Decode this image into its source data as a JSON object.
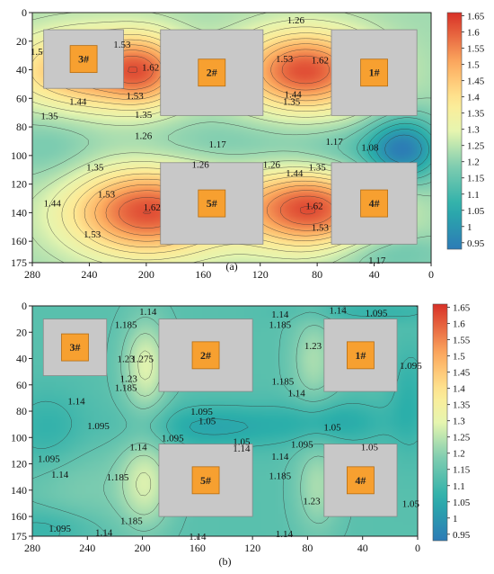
{
  "chart_data": [
    {
      "type": "heatmap",
      "subplot_label": "(a)",
      "x_ticks": [
        280,
        240,
        200,
        160,
        120,
        80,
        40,
        0
      ],
      "y_ticks": [
        0,
        20,
        40,
        60,
        80,
        100,
        120,
        140,
        160,
        175
      ],
      "xlim": [
        280,
        0
      ],
      "ylim": [
        0,
        175
      ],
      "colorbar": {
        "ticks": [
          "1.65",
          "1.6",
          "1.55",
          "1.5",
          "1.45",
          "1.4",
          "1.35",
          "1.3",
          "1.25",
          "1.2",
          "1.15",
          "1.1",
          "1.05",
          "1",
          "0.95"
        ],
        "min": 0.93,
        "max": 1.66
      },
      "base_value": 1.22,
      "blobs": [
        {
          "x": 240,
          "y": 40,
          "sx": 40,
          "sy": 20,
          "a": 0.3
        },
        {
          "x": 200,
          "y": 40,
          "sx": 20,
          "sy": 18,
          "a": 0.2
        },
        {
          "x": 88,
          "y": 40,
          "sx": 34,
          "sy": 20,
          "a": 0.4
        },
        {
          "x": 200,
          "y": 140,
          "sx": 40,
          "sy": 22,
          "a": 0.4
        },
        {
          "x": 85,
          "y": 138,
          "sx": 34,
          "sy": 20,
          "a": 0.4
        },
        {
          "x": 150,
          "y": 92,
          "sx": 55,
          "sy": 14,
          "a": -0.05
        },
        {
          "x": 18,
          "y": 95,
          "sx": 18,
          "sy": 16,
          "a": -0.24
        },
        {
          "x": 50,
          "y": 100,
          "sx": 35,
          "sy": 14,
          "a": -0.08
        },
        {
          "x": 30,
          "y": 170,
          "sx": 30,
          "sy": 10,
          "a": -0.07
        },
        {
          "x": 270,
          "y": 95,
          "sx": 25,
          "sy": 20,
          "a": -0.05
        }
      ],
      "contour_levels": [
        0.99,
        1.035,
        1.08,
        1.125,
        1.17,
        1.215,
        1.26,
        1.305,
        1.35,
        1.395,
        1.44,
        1.485,
        1.53,
        1.575,
        1.62
      ],
      "machines": [
        {
          "label": "3#",
          "x1": 272,
          "x2": 216,
          "y1": 12,
          "y2": 53
        },
        {
          "label": "2#",
          "x1": 190,
          "x2": 118,
          "y1": 12,
          "y2": 72
        },
        {
          "label": "1#",
          "x1": 70,
          "x2": 10,
          "y1": 12,
          "y2": 72
        },
        {
          "label": "5#",
          "x1": 190,
          "x2": 118,
          "y1": 105,
          "y2": 162
        },
        {
          "label": "4#",
          "x1": 70,
          "x2": 10,
          "y1": 105,
          "y2": 162
        }
      ],
      "contour_labels": [
        {
          "text": "1.26",
          "x": 95,
          "y": 5
        },
        {
          "text": "1.5",
          "x": 277,
          "y": 27
        },
        {
          "text": "1.53",
          "x": 217,
          "y": 22
        },
        {
          "text": "1.62",
          "x": 197,
          "y": 38
        },
        {
          "text": "1.53",
          "x": 208,
          "y": 58
        },
        {
          "text": "1.44",
          "x": 248,
          "y": 62
        },
        {
          "text": "1.35",
          "x": 268,
          "y": 72
        },
        {
          "text": "1.35",
          "x": 202,
          "y": 71
        },
        {
          "text": "1.53",
          "x": 103,
          "y": 32
        },
        {
          "text": "1.62",
          "x": 78,
          "y": 33
        },
        {
          "text": "1.44",
          "x": 97,
          "y": 57
        },
        {
          "text": "1.35",
          "x": 98,
          "y": 62
        },
        {
          "text": "1.26",
          "x": 202,
          "y": 86
        },
        {
          "text": "1.17",
          "x": 150,
          "y": 92
        },
        {
          "text": "1.17",
          "x": 68,
          "y": 90
        },
        {
          "text": "1.08",
          "x": 43,
          "y": 94
        },
        {
          "text": "1.35",
          "x": 236,
          "y": 108
        },
        {
          "text": "1.26",
          "x": 162,
          "y": 106
        },
        {
          "text": "1.26",
          "x": 112,
          "y": 106
        },
        {
          "text": "1.44",
          "x": 96,
          "y": 112
        },
        {
          "text": "1.35",
          "x": 80,
          "y": 108
        },
        {
          "text": "1.44",
          "x": 266,
          "y": 133
        },
        {
          "text": "1.53",
          "x": 228,
          "y": 127
        },
        {
          "text": "1.62",
          "x": 196,
          "y": 136
        },
        {
          "text": "1.53",
          "x": 238,
          "y": 155
        },
        {
          "text": "1.62",
          "x": 82,
          "y": 135
        },
        {
          "text": "1.53",
          "x": 78,
          "y": 150
        },
        {
          "text": "1.17",
          "x": 38,
          "y": 173
        }
      ]
    },
    {
      "type": "heatmap",
      "subplot_label": "(b)",
      "x_ticks": [
        280,
        240,
        200,
        160,
        120,
        80,
        40,
        0
      ],
      "y_ticks": [
        0,
        20,
        40,
        60,
        80,
        100,
        120,
        140,
        160,
        175
      ],
      "xlim": [
        280,
        0
      ],
      "ylim": [
        0,
        175
      ],
      "colorbar": {
        "ticks": [
          "1.65",
          "1.6",
          "1.55",
          "1.5",
          "1.45",
          "1.4",
          "1.35",
          "1.3",
          "1.25",
          "1.2",
          "1.15",
          "1.1",
          "1.05",
          "1",
          "0.95"
        ],
        "min": 0.93,
        "max": 1.66
      },
      "base_value": 1.13,
      "blobs": [
        {
          "x": 198,
          "y": 45,
          "sx": 12,
          "sy": 25,
          "a": 0.16
        },
        {
          "x": 198,
          "y": 135,
          "sx": 14,
          "sy": 25,
          "a": 0.14
        },
        {
          "x": 75,
          "y": 40,
          "sx": 12,
          "sy": 25,
          "a": 0.1
        },
        {
          "x": 72,
          "y": 138,
          "sx": 12,
          "sy": 25,
          "a": 0.1
        },
        {
          "x": 245,
          "y": 140,
          "sx": 30,
          "sy": 25,
          "a": 0.05
        },
        {
          "x": 150,
          "y": 92,
          "sx": 40,
          "sy": 12,
          "a": -0.09
        },
        {
          "x": 60,
          "y": 88,
          "sx": 30,
          "sy": 12,
          "a": -0.08
        },
        {
          "x": 270,
          "y": 95,
          "sx": 20,
          "sy": 22,
          "a": -0.06
        },
        {
          "x": 5,
          "y": 70,
          "sx": 10,
          "sy": 30,
          "a": -0.06
        },
        {
          "x": 270,
          "y": 170,
          "sx": 25,
          "sy": 12,
          "a": -0.06
        },
        {
          "x": 35,
          "y": 3,
          "sx": 40,
          "sy": 6,
          "a": -0.05
        }
      ],
      "contour_levels": [
        1.005,
        1.05,
        1.095,
        1.14,
        1.185,
        1.23,
        1.275
      ],
      "machines": [
        {
          "label": "3#",
          "x1": 272,
          "x2": 226,
          "y1": 10,
          "y2": 53
        },
        {
          "label": "2#",
          "x1": 188,
          "x2": 120,
          "y1": 10,
          "y2": 65
        },
        {
          "label": "1#",
          "x1": 68,
          "x2": 15,
          "y1": 10,
          "y2": 65
        },
        {
          "label": "5#",
          "x1": 188,
          "x2": 120,
          "y1": 105,
          "y2": 160
        },
        {
          "label": "4#",
          "x1": 68,
          "x2": 15,
          "y1": 105,
          "y2": 160
        }
      ],
      "contour_labels": [
        {
          "text": "1.14",
          "x": 196,
          "y": 4
        },
        {
          "text": "1.185",
          "x": 212,
          "y": 14
        },
        {
          "text": "1.23",
          "x": 212,
          "y": 40
        },
        {
          "text": "1.275",
          "x": 200,
          "y": 40
        },
        {
          "text": "1.23",
          "x": 210,
          "y": 55
        },
        {
          "text": "1.185",
          "x": 212,
          "y": 62
        },
        {
          "text": "1.14",
          "x": 100,
          "y": 6
        },
        {
          "text": "1.185",
          "x": 100,
          "y": 14
        },
        {
          "text": "1.14",
          "x": 58,
          "y": 3
        },
        {
          "text": "1.095",
          "x": 30,
          "y": 5
        },
        {
          "text": "1.23",
          "x": 76,
          "y": 30
        },
        {
          "text": "1.185",
          "x": 98,
          "y": 57
        },
        {
          "text": "1.14",
          "x": 88,
          "y": 66
        },
        {
          "text": "1.095",
          "x": 5,
          "y": 45
        },
        {
          "text": "1.14",
          "x": 248,
          "y": 72
        },
        {
          "text": "1.095",
          "x": 232,
          "y": 91
        },
        {
          "text": "1.095",
          "x": 157,
          "y": 80
        },
        {
          "text": "1.05",
          "x": 153,
          "y": 87
        },
        {
          "text": "1.095",
          "x": 178,
          "y": 100
        },
        {
          "text": "1.05",
          "x": 128,
          "y": 103
        },
        {
          "text": "1.05",
          "x": 62,
          "y": 92
        },
        {
          "text": "1.095",
          "x": 84,
          "y": 105
        },
        {
          "text": "1.05",
          "x": 35,
          "y": 107
        },
        {
          "text": "1.14",
          "x": 203,
          "y": 107
        },
        {
          "text": "1.14",
          "x": 128,
          "y": 108
        },
        {
          "text": "1.14",
          "x": 100,
          "y": 114
        },
        {
          "text": "1.095",
          "x": 268,
          "y": 116
        },
        {
          "text": "1.14",
          "x": 260,
          "y": 128
        },
        {
          "text": "1.185",
          "x": 218,
          "y": 130
        },
        {
          "text": "1.185",
          "x": 100,
          "y": 129
        },
        {
          "text": "1.23",
          "x": 77,
          "y": 148
        },
        {
          "text": "1.05",
          "x": 5,
          "y": 150
        },
        {
          "text": "1.185",
          "x": 208,
          "y": 163
        },
        {
          "text": "1.14",
          "x": 228,
          "y": 172
        },
        {
          "text": "1.095",
          "x": 260,
          "y": 169
        },
        {
          "text": "1.14",
          "x": 160,
          "y": 175
        },
        {
          "text": "1.14",
          "x": 97,
          "y": 173
        }
      ]
    }
  ]
}
